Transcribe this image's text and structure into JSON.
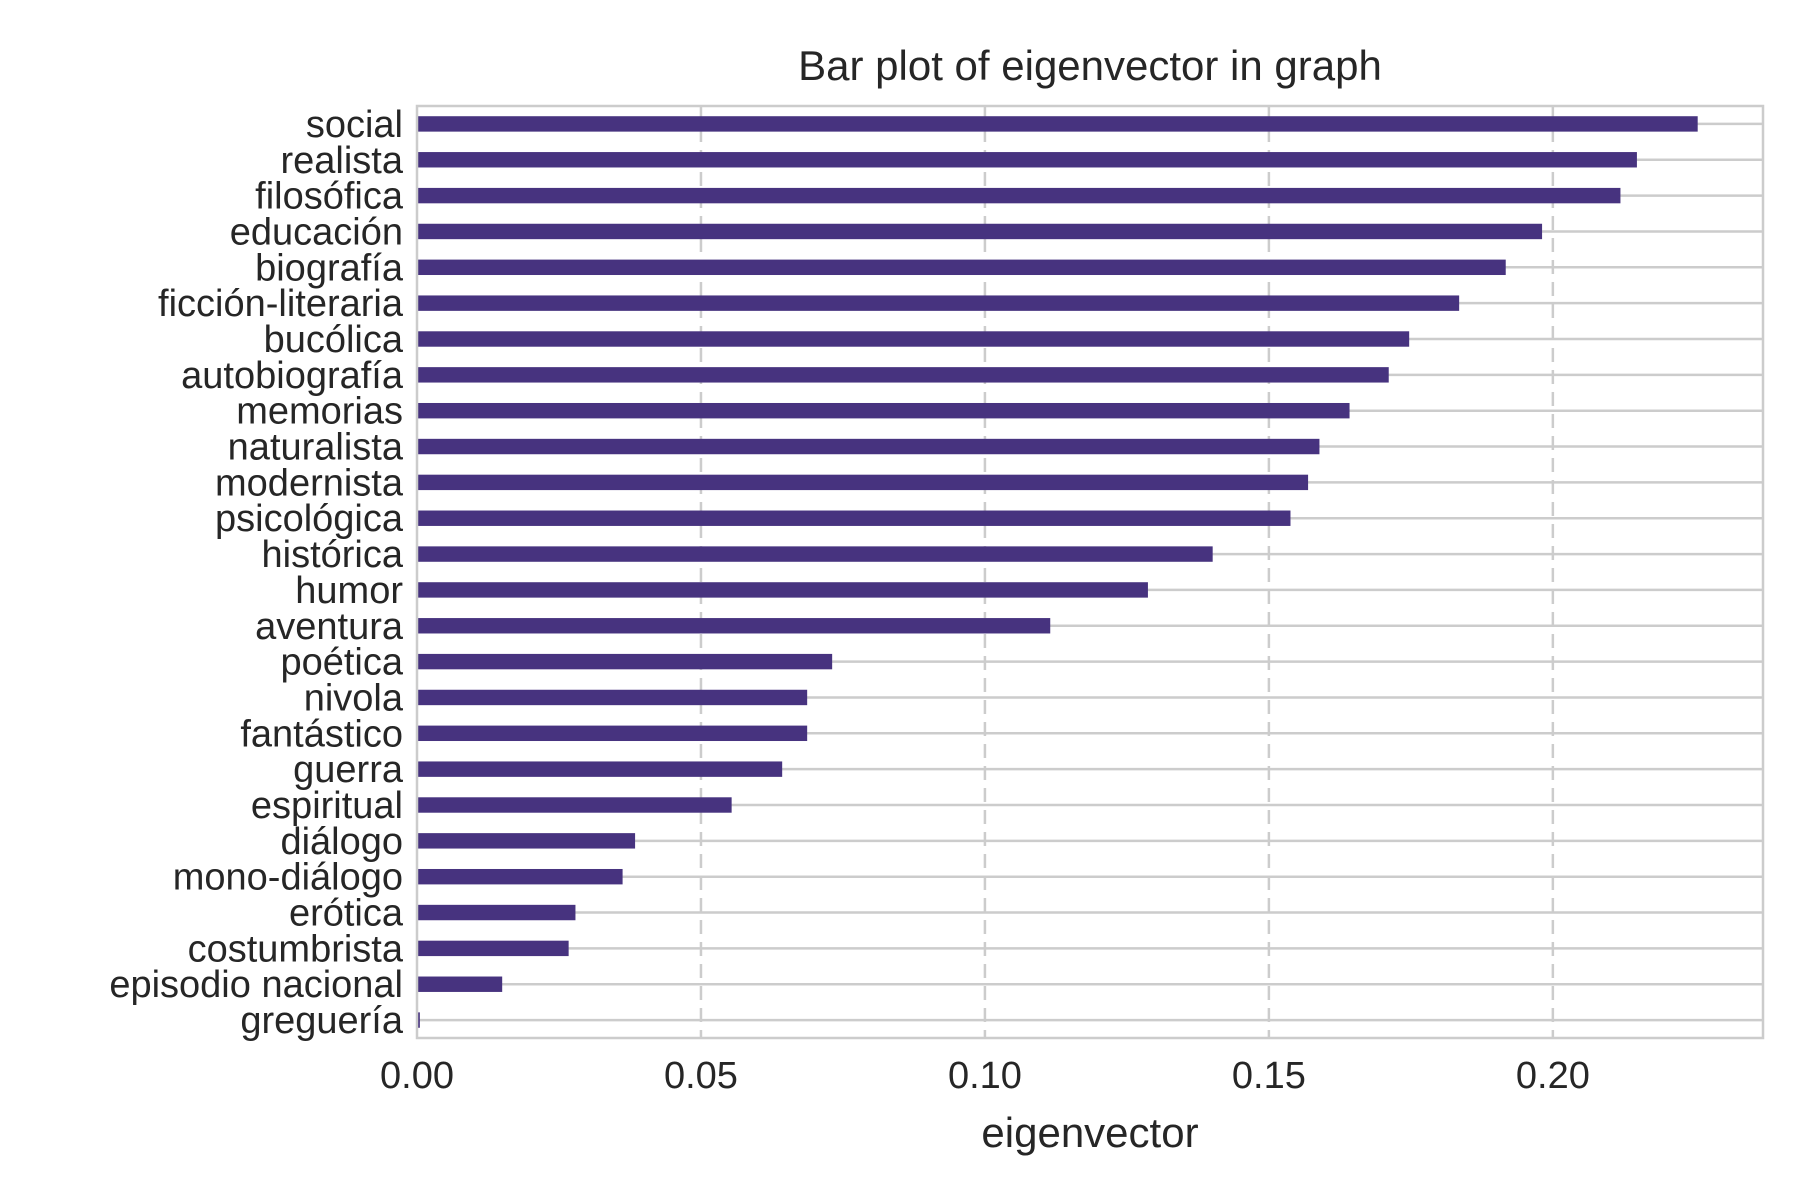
{
  "chart_data": {
    "type": "bar",
    "orientation": "horizontal",
    "title": "Bar plot of eigenvector in graph",
    "xlabel": "eigenvector",
    "ylabel": "",
    "xlim": [
      0,
      0.237
    ],
    "xticks": [
      "0.00",
      "0.05",
      "0.10",
      "0.15",
      "0.20"
    ],
    "xtick_values": [
      0,
      0.05,
      0.1,
      0.15,
      0.2
    ],
    "grid": true,
    "bar_color": "#47337f",
    "categories": [
      "social",
      "realista",
      "filosófica",
      "educación",
      "biografía",
      "ficción-literaria",
      "bucólica",
      "autobiografía",
      "memorias",
      "naturalista",
      "modernista",
      "psicológica",
      "histórica",
      "humor",
      "aventura",
      "poética",
      "nivola",
      "fantástico",
      "guerra",
      "espiritual",
      "diálogo",
      "mono-diálogo",
      "erótica",
      "costumbrista",
      "episodio nacional",
      "greguería"
    ],
    "values": [
      0.2255,
      0.2148,
      0.2119,
      0.1981,
      0.1917,
      0.1835,
      0.1747,
      0.1711,
      0.1642,
      0.1589,
      0.1569,
      0.1538,
      0.1401,
      0.1287,
      0.1115,
      0.0731,
      0.0687,
      0.0687,
      0.0643,
      0.0554,
      0.0384,
      0.0362,
      0.0279,
      0.0267,
      0.015,
      0.0005
    ]
  }
}
